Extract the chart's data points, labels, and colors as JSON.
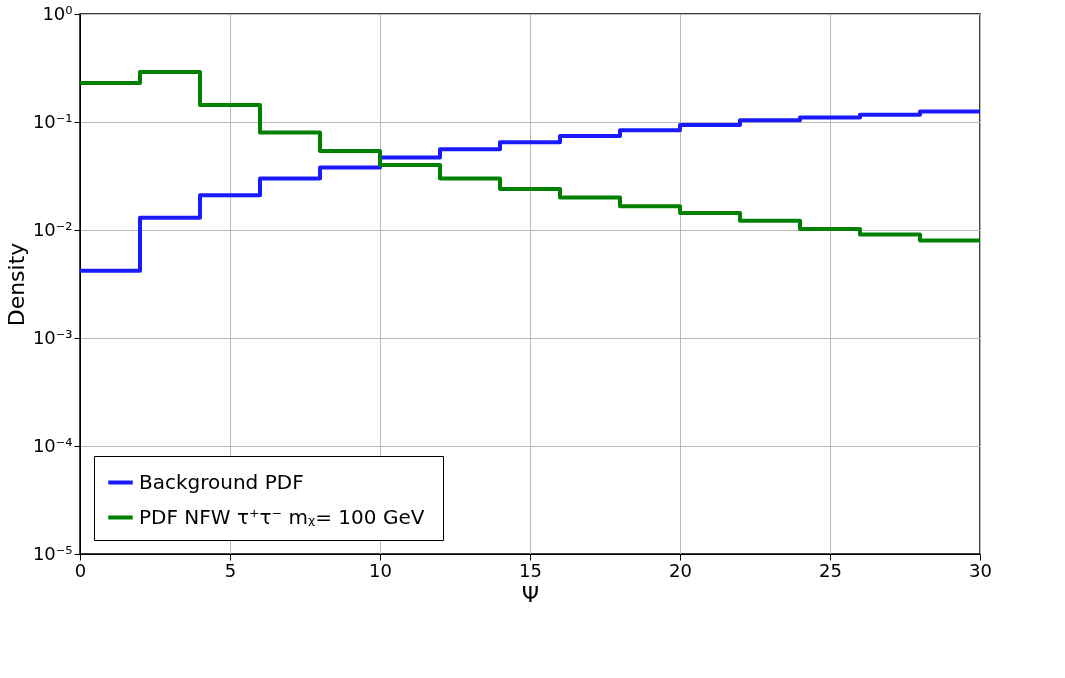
{
  "chart_data": {
    "type": "step",
    "xlabel": "Ψ",
    "ylabel": "Density",
    "xlim": [
      0,
      30
    ],
    "xticks": [
      0,
      5,
      10,
      15,
      20,
      25,
      30
    ],
    "ylim": [
      1e-05,
      1
    ],
    "yticks": [
      {
        "value": 1e-05,
        "label": "10⁻⁵"
      },
      {
        "value": 0.0001,
        "label": "10⁻⁴"
      },
      {
        "value": 0.001,
        "label": "10⁻³"
      },
      {
        "value": 0.01,
        "label": "10⁻²"
      },
      {
        "value": 0.1,
        "label": "10⁻¹"
      },
      {
        "value": 1,
        "label": "10⁰"
      }
    ],
    "log": "y",
    "grid": true,
    "legend": "bottom left",
    "line_style": "solid",
    "marker": "none",
    "x": [
      0,
      2,
      4,
      6,
      8,
      10,
      12,
      14,
      16,
      18,
      20,
      22,
      24,
      26,
      28,
      30
    ],
    "series": [
      {
        "name": "Background PDF",
        "color": "#1a1aff",
        "values": [
          0.0042,
          0.013,
          0.021,
          0.03,
          0.038,
          0.047,
          0.056,
          0.065,
          0.074,
          0.084,
          0.094,
          0.104,
          0.11,
          0.117,
          0.125,
          0.125
        ]
      },
      {
        "name": "PDF NFW τ⁺τ⁻  mᵪ= 100 GeV",
        "color": "#008000",
        "values": [
          0.23,
          0.29,
          0.144,
          0.08,
          0.054,
          0.04,
          0.03,
          0.024,
          0.02,
          0.0166,
          0.0144,
          0.0122,
          0.0102,
          0.0091,
          0.008,
          0.008
        ]
      }
    ]
  }
}
